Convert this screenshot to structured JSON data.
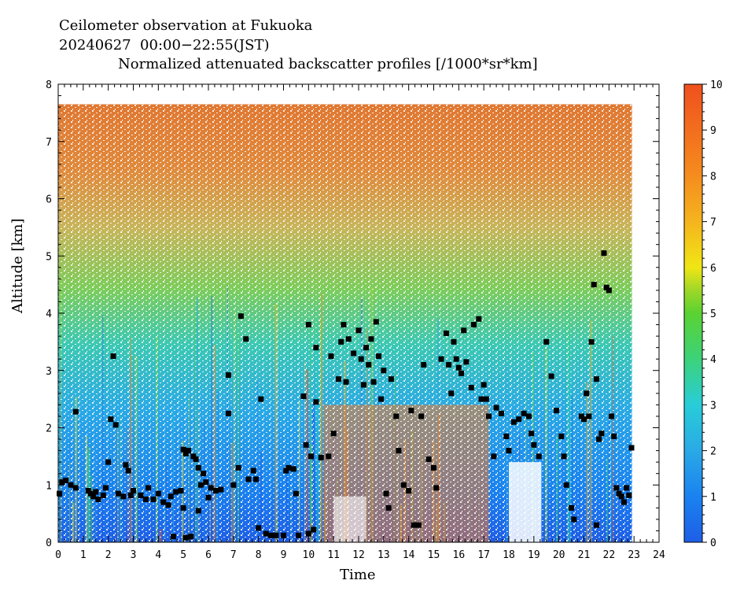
{
  "chart_data": {
    "type": "heatmap",
    "title_lines": [
      "Ceilometer observation at Fukuoka",
      "20240627  00:00−22:55(JST)",
      "Normalized attenuated backscatter profiles [/1000*sr*km]"
    ],
    "xlabel": "Time",
    "ylabel": "Altitude [km]",
    "xlim": [
      0,
      24
    ],
    "ylim": [
      0,
      8
    ],
    "x_ticks": [
      "0",
      "1",
      "2",
      "3",
      "4",
      "5",
      "6",
      "7",
      "8",
      "9",
      "10",
      "11",
      "12",
      "13",
      "14",
      "15",
      "16",
      "17",
      "18",
      "19",
      "20",
      "21",
      "22",
      "23",
      "24"
    ],
    "y_ticks": [
      "0",
      "1",
      "2",
      "3",
      "4",
      "5",
      "6",
      "7",
      "8"
    ],
    "colorbar": {
      "range": [
        0,
        10
      ],
      "ticks": [
        "0",
        "1",
        "2",
        "3",
        "4",
        "5",
        "6",
        "7",
        "8",
        "9",
        "10"
      ],
      "colors": [
        "#1e5ee6",
        "#1a82f0",
        "#2aa9e6",
        "#28cdd8",
        "#3cd27a",
        "#5ad232",
        "#9ed728",
        "#f0e614",
        "#f5b41e",
        "#f58c1e",
        "#f0501e"
      ]
    },
    "data_extent": {
      "time_end": 22.92,
      "altitude_top": 7.65
    },
    "markers": [
      [
        0.05,
        0.85
      ],
      [
        0.15,
        1.05
      ],
      [
        0.3,
        1.08
      ],
      [
        0.5,
        1.0
      ],
      [
        0.7,
        0.95
      ],
      [
        0.7,
        2.28
      ],
      [
        1.2,
        0.9
      ],
      [
        1.3,
        0.85
      ],
      [
        1.4,
        0.8
      ],
      [
        1.5,
        0.88
      ],
      [
        1.6,
        0.75
      ],
      [
        1.8,
        0.82
      ],
      [
        1.9,
        0.95
      ],
      [
        2.0,
        1.4
      ],
      [
        2.1,
        2.15
      ],
      [
        2.2,
        3.25
      ],
      [
        2.3,
        2.05
      ],
      [
        2.4,
        0.85
      ],
      [
        2.6,
        0.8
      ],
      [
        2.7,
        1.35
      ],
      [
        2.8,
        1.25
      ],
      [
        2.9,
        0.82
      ],
      [
        3.0,
        0.9
      ],
      [
        3.3,
        0.82
      ],
      [
        3.5,
        0.75
      ],
      [
        3.6,
        0.95
      ],
      [
        3.8,
        0.75
      ],
      [
        4.0,
        0.85
      ],
      [
        4.2,
        0.7
      ],
      [
        4.4,
        0.65
      ],
      [
        4.5,
        0.8
      ],
      [
        4.7,
        0.88
      ],
      [
        4.9,
        0.9
      ],
      [
        4.6,
        0.1
      ],
      [
        5.0,
        1.62
      ],
      [
        5.1,
        1.55
      ],
      [
        5.2,
        1.6
      ],
      [
        5.4,
        1.5
      ],
      [
        5.5,
        1.45
      ],
      [
        5.6,
        1.3
      ],
      [
        5.7,
        1.0
      ],
      [
        5.8,
        1.2
      ],
      [
        5.9,
        1.05
      ],
      [
        6.0,
        0.78
      ],
      [
        6.1,
        0.95
      ],
      [
        6.3,
        0.9
      ],
      [
        6.5,
        0.92
      ],
      [
        5.1,
        0.08
      ],
      [
        5.3,
        0.1
      ],
      [
        5.0,
        0.6
      ],
      [
        5.6,
        0.55
      ],
      [
        6.8,
        2.92
      ],
      [
        6.8,
        2.25
      ],
      [
        7.0,
        1.0
      ],
      [
        7.2,
        1.3
      ],
      [
        7.3,
        3.95
      ],
      [
        7.5,
        3.55
      ],
      [
        7.6,
        1.1
      ],
      [
        7.8,
        1.25
      ],
      [
        7.9,
        1.1
      ],
      [
        8.0,
        0.25
      ],
      [
        8.1,
        2.5
      ],
      [
        8.3,
        0.15
      ],
      [
        8.5,
        0.12
      ],
      [
        8.7,
        0.12
      ],
      [
        9.0,
        0.12
      ],
      [
        9.1,
        1.25
      ],
      [
        9.2,
        1.3
      ],
      [
        9.4,
        1.28
      ],
      [
        9.5,
        0.85
      ],
      [
        9.6,
        0.12
      ],
      [
        9.8,
        2.55
      ],
      [
        9.9,
        1.7
      ],
      [
        10.0,
        0.15
      ],
      [
        10.1,
        1.5
      ],
      [
        10.3,
        2.45
      ],
      [
        10.5,
        1.48
      ],
      [
        10.8,
        1.5
      ],
      [
        10.9,
        3.25
      ],
      [
        10.2,
        0.22
      ],
      [
        10.0,
        3.8
      ],
      [
        10.3,
        3.4
      ],
      [
        11.0,
        1.9
      ],
      [
        11.2,
        2.85
      ],
      [
        11.3,
        3.5
      ],
      [
        11.4,
        3.8
      ],
      [
        11.5,
        2.8
      ],
      [
        11.6,
        3.55
      ],
      [
        11.8,
        3.3
      ],
      [
        12.0,
        3.7
      ],
      [
        12.1,
        3.2
      ],
      [
        12.2,
        2.75
      ],
      [
        12.3,
        3.4
      ],
      [
        12.4,
        3.1
      ],
      [
        12.5,
        3.55
      ],
      [
        12.6,
        2.8
      ],
      [
        12.7,
        3.85
      ],
      [
        12.8,
        3.25
      ],
      [
        12.9,
        2.5
      ],
      [
        13.0,
        3.0
      ],
      [
        13.1,
        0.85
      ],
      [
        13.2,
        0.6
      ],
      [
        13.3,
        2.85
      ],
      [
        13.5,
        2.2
      ],
      [
        13.6,
        1.6
      ],
      [
        13.8,
        1.0
      ],
      [
        14.0,
        0.9
      ],
      [
        14.1,
        2.3
      ],
      [
        14.2,
        0.3
      ],
      [
        14.4,
        0.3
      ],
      [
        14.5,
        2.2
      ],
      [
        14.6,
        3.1
      ],
      [
        14.8,
        1.45
      ],
      [
        15.0,
        1.3
      ],
      [
        15.1,
        0.95
      ],
      [
        15.3,
        3.2
      ],
      [
        15.5,
        3.65
      ],
      [
        15.6,
        3.1
      ],
      [
        15.7,
        2.6
      ],
      [
        15.8,
        3.5
      ],
      [
        15.9,
        3.2
      ],
      [
        16.0,
        3.05
      ],
      [
        16.1,
        2.95
      ],
      [
        16.2,
        3.7
      ],
      [
        16.3,
        3.15
      ],
      [
        16.5,
        2.7
      ],
      [
        16.6,
        3.8
      ],
      [
        16.8,
        3.9
      ],
      [
        16.9,
        2.5
      ],
      [
        17.0,
        2.75
      ],
      [
        17.1,
        2.5
      ],
      [
        17.2,
        2.2
      ],
      [
        17.4,
        1.5
      ],
      [
        17.5,
        2.35
      ],
      [
        17.7,
        2.25
      ],
      [
        17.9,
        1.85
      ],
      [
        18.0,
        1.6
      ],
      [
        18.2,
        2.1
      ],
      [
        18.4,
        2.15
      ],
      [
        18.6,
        2.25
      ],
      [
        18.8,
        2.2
      ],
      [
        18.9,
        1.9
      ],
      [
        19.0,
        1.7
      ],
      [
        19.2,
        1.5
      ],
      [
        19.5,
        3.5
      ],
      [
        19.7,
        2.9
      ],
      [
        19.9,
        2.3
      ],
      [
        20.1,
        1.85
      ],
      [
        20.2,
        1.5
      ],
      [
        20.3,
        1.0
      ],
      [
        20.5,
        0.6
      ],
      [
        20.6,
        0.4
      ],
      [
        20.9,
        2.2
      ],
      [
        21.0,
        2.15
      ],
      [
        21.1,
        2.6
      ],
      [
        21.2,
        2.2
      ],
      [
        21.3,
        3.5
      ],
      [
        21.4,
        4.5
      ],
      [
        21.5,
        2.85
      ],
      [
        21.6,
        1.8
      ],
      [
        21.7,
        1.9
      ],
      [
        21.8,
        5.05
      ],
      [
        21.9,
        4.45
      ],
      [
        22.0,
        4.4
      ],
      [
        22.1,
        2.2
      ],
      [
        22.2,
        1.85
      ],
      [
        22.3,
        0.95
      ],
      [
        22.4,
        0.85
      ],
      [
        22.5,
        0.8
      ],
      [
        22.6,
        0.7
      ],
      [
        22.7,
        0.95
      ],
      [
        22.8,
        0.82
      ],
      [
        22.9,
        1.65
      ],
      [
        21.5,
        0.3
      ]
    ]
  }
}
